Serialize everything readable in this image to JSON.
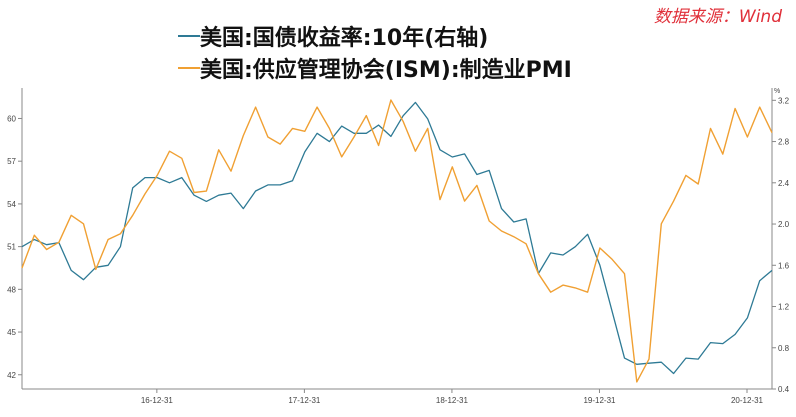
{
  "source_text": "数据来源：Wind",
  "colors": {
    "series_pmi": "#f0a033",
    "series_yield": "#2e7a95",
    "axis": "#888888",
    "source": "#e0303a"
  },
  "chart_data": {
    "type": "line",
    "legend_position": "top-center",
    "grid": false,
    "x_ticks": [
      "16-12-31",
      "17-12-31",
      "18-12-31",
      "19-12-31",
      "20-12-31"
    ],
    "x_range": [
      "2016-02",
      "2021-03"
    ],
    "left_axis": {
      "ticks": [
        "42",
        "45",
        "48",
        "51",
        "54",
        "57",
        "60"
      ],
      "range": [
        41,
        62
      ]
    },
    "right_axis": {
      "unit": "%",
      "ticks": [
        "0.4",
        "0.8",
        "1.2",
        "1.6",
        "2.0",
        "2.4",
        "2.8",
        "3.2"
      ],
      "range": [
        0.4,
        3.3
      ]
    },
    "series": [
      {
        "name": "美国:国债收益率:10年(右轴)",
        "axis": "right",
        "values": [
          [
            "2016-02",
            1.78
          ],
          [
            "2016-03",
            1.85
          ],
          [
            "2016-04",
            1.8
          ],
          [
            "2016-05",
            1.82
          ],
          [
            "2016-06",
            1.55
          ],
          [
            "2016-07",
            1.46
          ],
          [
            "2016-08",
            1.58
          ],
          [
            "2016-09",
            1.6
          ],
          [
            "2016-10",
            1.78
          ],
          [
            "2016-11",
            2.35
          ],
          [
            "2016-12",
            2.45
          ],
          [
            "2017-01",
            2.45
          ],
          [
            "2017-02",
            2.4
          ],
          [
            "2017-03",
            2.45
          ],
          [
            "2017-04",
            2.28
          ],
          [
            "2017-05",
            2.22
          ],
          [
            "2017-06",
            2.28
          ],
          [
            "2017-07",
            2.3
          ],
          [
            "2017-08",
            2.15
          ],
          [
            "2017-09",
            2.32
          ],
          [
            "2017-10",
            2.38
          ],
          [
            "2017-11",
            2.38
          ],
          [
            "2017-12",
            2.42
          ],
          [
            "2018-01",
            2.7
          ],
          [
            "2018-02",
            2.88
          ],
          [
            "2018-03",
            2.8
          ],
          [
            "2018-04",
            2.95
          ],
          [
            "2018-05",
            2.88
          ],
          [
            "2018-06",
            2.88
          ],
          [
            "2018-07",
            2.96
          ],
          [
            "2018-08",
            2.85
          ],
          [
            "2018-09",
            3.05
          ],
          [
            "2018-10",
            3.18
          ],
          [
            "2018-11",
            3.02
          ],
          [
            "2018-12",
            2.72
          ],
          [
            "2019-01",
            2.65
          ],
          [
            "2019-02",
            2.68
          ],
          [
            "2019-03",
            2.48
          ],
          [
            "2019-04",
            2.52
          ],
          [
            "2019-05",
            2.15
          ],
          [
            "2019-06",
            2.02
          ],
          [
            "2019-07",
            2.05
          ],
          [
            "2019-08",
            1.52
          ],
          [
            "2019-09",
            1.72
          ],
          [
            "2019-10",
            1.7
          ],
          [
            "2019-11",
            1.78
          ],
          [
            "2019-12",
            1.9
          ],
          [
            "2020-01",
            1.6
          ],
          [
            "2020-02",
            1.15
          ],
          [
            "2020-03",
            0.7
          ],
          [
            "2020-04",
            0.64
          ],
          [
            "2020-05",
            0.65
          ],
          [
            "2020-06",
            0.66
          ],
          [
            "2020-07",
            0.55
          ],
          [
            "2020-08",
            0.7
          ],
          [
            "2020-09",
            0.69
          ],
          [
            "2020-10",
            0.85
          ],
          [
            "2020-11",
            0.84
          ],
          [
            "2020-12",
            0.93
          ],
          [
            "2021-01",
            1.09
          ],
          [
            "2021-02",
            1.45
          ],
          [
            "2021-03",
            1.55
          ]
        ]
      },
      {
        "name": "美国:供应管理协会(ISM):制造业PMI",
        "axis": "left",
        "values": [
          [
            "2016-02",
            49.5
          ],
          [
            "2016-03",
            51.8
          ],
          [
            "2016-04",
            50.8
          ],
          [
            "2016-05",
            51.3
          ],
          [
            "2016-06",
            53.2
          ],
          [
            "2016-07",
            52.6
          ],
          [
            "2016-08",
            49.4
          ],
          [
            "2016-09",
            51.5
          ],
          [
            "2016-10",
            51.9
          ],
          [
            "2016-11",
            53.2
          ],
          [
            "2016-12",
            54.7
          ],
          [
            "2017-01",
            56.0
          ],
          [
            "2017-02",
            57.7
          ],
          [
            "2017-03",
            57.2
          ],
          [
            "2017-04",
            54.8
          ],
          [
            "2017-05",
            54.9
          ],
          [
            "2017-06",
            57.8
          ],
          [
            "2017-07",
            56.3
          ],
          [
            "2017-08",
            58.8
          ],
          [
            "2017-09",
            60.8
          ],
          [
            "2017-10",
            58.7
          ],
          [
            "2017-11",
            58.2
          ],
          [
            "2017-12",
            59.3
          ],
          [
            "2018-01",
            59.1
          ],
          [
            "2018-02",
            60.8
          ],
          [
            "2018-03",
            59.3
          ],
          [
            "2018-04",
            57.3
          ],
          [
            "2018-05",
            58.7
          ],
          [
            "2018-06",
            60.2
          ],
          [
            "2018-07",
            58.1
          ],
          [
            "2018-08",
            61.3
          ],
          [
            "2018-09",
            59.8
          ],
          [
            "2018-10",
            57.7
          ],
          [
            "2018-11",
            59.3
          ],
          [
            "2018-12",
            54.3
          ],
          [
            "2019-01",
            56.6
          ],
          [
            "2019-02",
            54.2
          ],
          [
            "2019-03",
            55.3
          ],
          [
            "2019-04",
            52.8
          ],
          [
            "2019-05",
            52.1
          ],
          [
            "2019-06",
            51.7
          ],
          [
            "2019-07",
            51.2
          ],
          [
            "2019-08",
            49.1
          ],
          [
            "2019-09",
            47.8
          ],
          [
            "2019-10",
            48.3
          ],
          [
            "2019-11",
            48.1
          ],
          [
            "2019-12",
            47.8
          ],
          [
            "2020-01",
            50.9
          ],
          [
            "2020-02",
            50.1
          ],
          [
            "2020-03",
            49.1
          ],
          [
            "2020-04",
            41.5
          ],
          [
            "2020-05",
            43.1
          ],
          [
            "2020-06",
            52.6
          ],
          [
            "2020-07",
            54.2
          ],
          [
            "2020-08",
            56.0
          ],
          [
            "2020-09",
            55.4
          ],
          [
            "2020-10",
            59.3
          ],
          [
            "2020-11",
            57.5
          ],
          [
            "2020-12",
            60.7
          ],
          [
            "2021-01",
            58.7
          ],
          [
            "2021-02",
            60.8
          ],
          [
            "2021-03",
            59.0
          ]
        ]
      }
    ]
  }
}
